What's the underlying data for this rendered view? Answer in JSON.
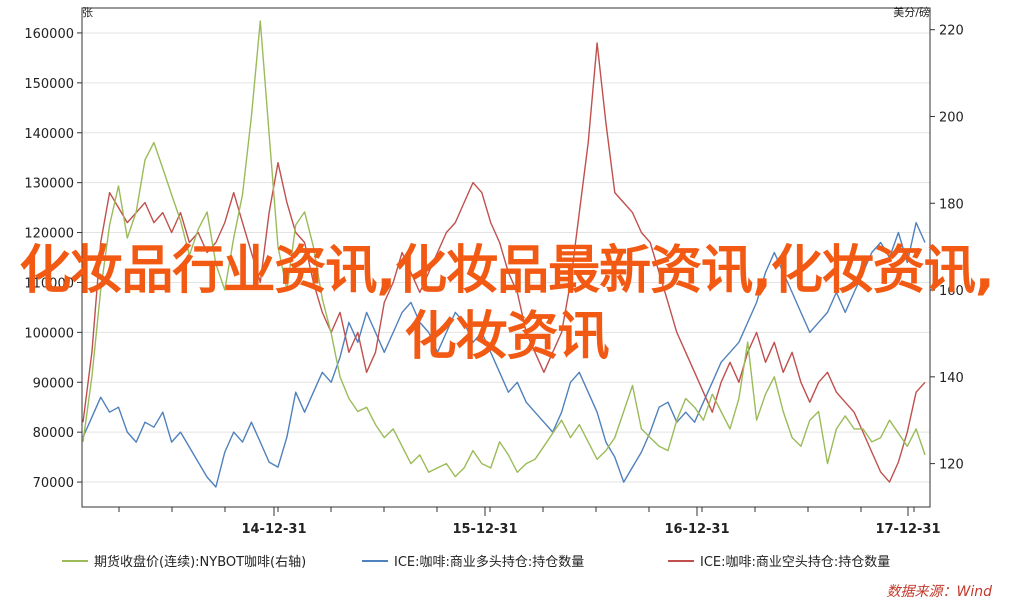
{
  "chart_data": {
    "type": "line",
    "left_axis_unit": "张",
    "right_axis_unit": "美分/磅",
    "left_ylim": [
      65000,
      165000
    ],
    "right_ylim": [
      110,
      225
    ],
    "left_ticks": [
      "70000",
      "80000",
      "90000",
      "100000",
      "110000",
      "120000",
      "130000",
      "140000",
      "150000",
      "160000"
    ],
    "right_ticks": [
      "120",
      "140",
      "160",
      "180",
      "200",
      "220"
    ],
    "x_ticks": [
      "14-12-31",
      "15-12-31",
      "16-12-31",
      "17-12-31"
    ],
    "grid": true,
    "legend_position": "bottom",
    "series": [
      {
        "name": "期货收盘价(连续):NYBOT咖啡(右轴)",
        "axis": "right",
        "color": "#9bbb59",
        "values": [
          125,
          140,
          160,
          175,
          184,
          172,
          178,
          190,
          194,
          188,
          182,
          176,
          168,
          174,
          178,
          166,
          160,
          172,
          182,
          200,
          222,
          196,
          170,
          160,
          175,
          178,
          170,
          158,
          150,
          140,
          135,
          132,
          133,
          129,
          126,
          128,
          124,
          120,
          122,
          118,
          119,
          120,
          117,
          119,
          123,
          120,
          119,
          125,
          122,
          118,
          120,
          121,
          124,
          127,
          130,
          126,
          129,
          125,
          121,
          123,
          126,
          132,
          138,
          128,
          126,
          124,
          123,
          130,
          135,
          133,
          130,
          136,
          132,
          128,
          135,
          148,
          130,
          136,
          140,
          132,
          126,
          124,
          130,
          132,
          120,
          128,
          131,
          128,
          128,
          125,
          126,
          130,
          127,
          124,
          128,
          122
        ]
      },
      {
        "name": "ICE:咖啡:商业多头持仓:持仓数量",
        "axis": "left",
        "color": "#4f81bd",
        "values": [
          79000,
          83000,
          87000,
          84000,
          85000,
          80000,
          78000,
          82000,
          81000,
          84000,
          78000,
          80000,
          77000,
          74000,
          71000,
          69000,
          76000,
          80000,
          78000,
          82000,
          78000,
          74000,
          73000,
          79000,
          88000,
          84000,
          88000,
          92000,
          90000,
          95000,
          102000,
          98000,
          104000,
          100000,
          96000,
          100000,
          104000,
          106000,
          102000,
          100000,
          96000,
          100000,
          104000,
          102000,
          98000,
          100000,
          96000,
          92000,
          88000,
          90000,
          86000,
          84000,
          82000,
          80000,
          84000,
          90000,
          92000,
          88000,
          84000,
          78000,
          75000,
          70000,
          73000,
          76000,
          80000,
          85000,
          86000,
          82000,
          84000,
          82000,
          86000,
          90000,
          94000,
          96000,
          98000,
          102000,
          106000,
          112000,
          116000,
          112000,
          108000,
          104000,
          100000,
          102000,
          104000,
          108000,
          104000,
          108000,
          112000,
          116000,
          118000,
          115000,
          120000,
          114000,
          122000,
          118000
        ]
      },
      {
        "name": "ICE:咖啡:商业空头持仓:持仓数量",
        "axis": "left",
        "color": "#c0504d",
        "values": [
          82000,
          96000,
          118000,
          128000,
          125000,
          122000,
          124000,
          126000,
          122000,
          124000,
          120000,
          124000,
          118000,
          120000,
          116000,
          118000,
          122000,
          128000,
          122000,
          116000,
          110000,
          124000,
          134000,
          126000,
          120000,
          118000,
          110000,
          104000,
          100000,
          104000,
          96000,
          100000,
          92000,
          96000,
          106000,
          110000,
          116000,
          112000,
          108000,
          112000,
          116000,
          120000,
          122000,
          126000,
          130000,
          128000,
          122000,
          118000,
          112000,
          108000,
          100000,
          96000,
          92000,
          96000,
          100000,
          110000,
          124000,
          138000,
          158000,
          142000,
          128000,
          126000,
          124000,
          120000,
          118000,
          112000,
          106000,
          100000,
          96000,
          92000,
          88000,
          84000,
          90000,
          94000,
          90000,
          96000,
          100000,
          94000,
          98000,
          92000,
          96000,
          90000,
          86000,
          90000,
          92000,
          88000,
          86000,
          84000,
          80000,
          76000,
          72000,
          70000,
          74000,
          80000,
          88000,
          90000
        ]
      }
    ]
  },
  "overlay_title": "化妆品行业资讯,化妆品最新资讯,化妆资讯,化妆资讯",
  "source_label": "数据来源：Wind"
}
